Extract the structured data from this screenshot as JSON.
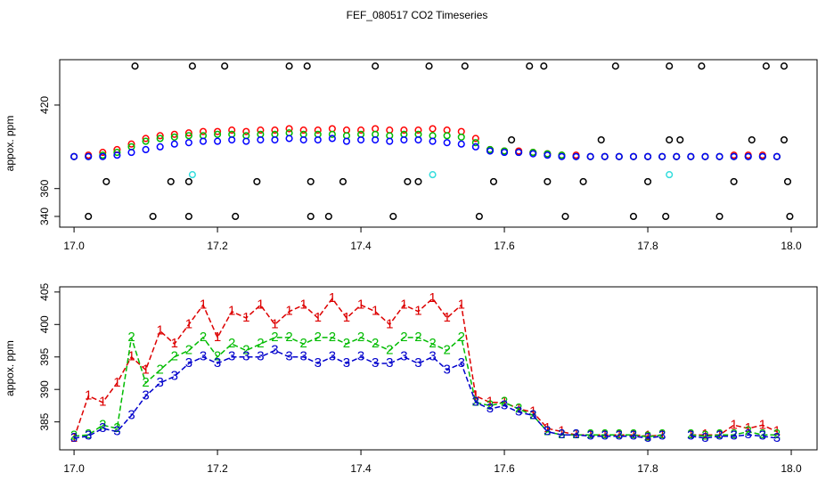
{
  "title": "FEF_080517  CO2 Timeseries",
  "chart_data": [
    {
      "type": "scatter",
      "ylabel": "appox. ppm",
      "xlim": [
        16.98,
        18.036
      ],
      "xticks": [
        {
          "value": 17.0,
          "label": "17.0"
        },
        17.2,
        17.4,
        17.6,
        17.8,
        {
          "value": 18.0,
          "label": "18.0"
        }
      ],
      "ylim": [
        332.3,
        452.6
      ],
      "yticks": [
        340,
        360,
        420
      ],
      "x": [
        17.0,
        17.02,
        17.04,
        17.06,
        17.08,
        17.1,
        17.12,
        17.14,
        17.16,
        17.18,
        17.2,
        17.22,
        17.24,
        17.26,
        17.28,
        17.3,
        17.32,
        17.34,
        17.36,
        17.38,
        17.4,
        17.42,
        17.44,
        17.46,
        17.48,
        17.5,
        17.52,
        17.54,
        17.56,
        17.58,
        17.6,
        17.62,
        17.64,
        17.66,
        17.68,
        17.7,
        17.72,
        17.74,
        17.76,
        17.78,
        17.8,
        17.82,
        17.84,
        17.86,
        17.88,
        17.9,
        17.92,
        17.94,
        17.96,
        17.98
      ],
      "series": [
        {
          "color": "#ff0000",
          "values": [
            383,
            384,
            386,
            388,
            392,
            396,
            398,
            399,
            400,
            401,
            401,
            402,
            401,
            402,
            402,
            403,
            402,
            402,
            403,
            402,
            402,
            403,
            402,
            402,
            402,
            403,
            402,
            401,
            396,
            388,
            387,
            387,
            386,
            385,
            384,
            384,
            383,
            383,
            383,
            383,
            383,
            383,
            383,
            383,
            383,
            383,
            384,
            384,
            384,
            383
          ]
        },
        {
          "color": "#00bb00",
          "values": [
            383,
            383,
            384,
            386,
            390,
            394,
            396,
            397,
            398,
            398,
            399,
            399,
            398,
            399,
            399,
            400,
            399,
            399,
            399,
            398,
            399,
            399,
            398,
            399,
            399,
            398,
            398,
            397,
            393,
            388,
            387,
            386,
            386,
            385,
            384,
            383,
            383,
            383,
            383,
            383,
            383,
            383,
            383,
            383,
            383,
            383,
            383,
            383,
            383,
            383
          ]
        },
        {
          "color": "#0000ff",
          "values": [
            383,
            383,
            383,
            384,
            386,
            388,
            390,
            392,
            393,
            394,
            394,
            395,
            394,
            395,
            395,
            396,
            395,
            395,
            396,
            394,
            395,
            395,
            394,
            395,
            395,
            394,
            393,
            392,
            390,
            387,
            386,
            386,
            385,
            384,
            383,
            383,
            383,
            383,
            383,
            383,
            383,
            383,
            383,
            383,
            383,
            383,
            383,
            383,
            383,
            383
          ]
        },
        {
          "color": "#000000",
          "x": [
            17.02,
            17.045,
            17.085,
            17.11,
            17.135,
            17.16,
            17.16,
            17.165,
            17.21,
            17.225,
            17.255,
            17.3,
            17.325,
            17.33,
            17.33,
            17.355,
            17.375,
            17.42,
            17.445,
            17.465,
            17.48,
            17.495,
            17.545,
            17.565,
            17.585,
            17.61,
            17.635,
            17.655,
            17.66,
            17.685,
            17.71,
            17.735,
            17.755,
            17.78,
            17.8,
            17.825,
            17.83,
            17.83,
            17.845,
            17.875,
            17.9,
            17.92,
            17.945,
            17.965,
            17.99,
            17.99,
            17.995,
            17.998
          ],
          "values": [
            340,
            365,
            448,
            340,
            365,
            365,
            340,
            448,
            448,
            340,
            365,
            448,
            448,
            365,
            340,
            340,
            365,
            448,
            340,
            365,
            365,
            448,
            448,
            340,
            365,
            395,
            448,
            448,
            365,
            340,
            365,
            395,
            448,
            340,
            365,
            340,
            448,
            395,
            395,
            448,
            340,
            365,
            395,
            448,
            448,
            395,
            365,
            340
          ]
        },
        {
          "color": "#33dddd",
          "x": [
            17.165,
            17.5,
            17.83
          ],
          "values": [
            370,
            370,
            370
          ]
        }
      ]
    },
    {
      "type": "line",
      "ylabel": "appox. ppm",
      "xlim": [
        16.98,
        18.036
      ],
      "xticks": [
        {
          "value": 17.0,
          "label": "17.0"
        },
        17.2,
        17.4,
        17.6,
        17.8,
        {
          "value": 18.0,
          "label": "18.0"
        }
      ],
      "ylim": [
        380.7,
        405.8
      ],
      "yticks": [
        385,
        390,
        395,
        400,
        405
      ],
      "x": [
        17.0,
        17.02,
        17.04,
        17.06,
        17.08,
        17.1,
        17.12,
        17.14,
        17.16,
        17.18,
        17.2,
        17.22,
        17.24,
        17.26,
        17.28,
        17.3,
        17.32,
        17.34,
        17.36,
        17.38,
        17.4,
        17.42,
        17.44,
        17.46,
        17.48,
        17.5,
        17.52,
        17.54,
        17.56,
        17.58,
        17.6,
        17.62,
        17.64,
        17.66,
        17.68,
        17.7,
        17.72,
        17.74,
        17.76,
        17.78,
        17.8,
        17.82,
        17.84,
        17.86,
        17.88,
        17.9,
        17.92,
        17.94,
        17.96,
        17.98
      ],
      "series": [
        {
          "color": "#dd0000",
          "marker": "1",
          "values": [
            382.5,
            389,
            388,
            391,
            395,
            393,
            399,
            397,
            400,
            403,
            398,
            402,
            401,
            403,
            400,
            402,
            403,
            401,
            404,
            401,
            403,
            402,
            400,
            403,
            402,
            404,
            401,
            403,
            389,
            388,
            388,
            387,
            386.5,
            384,
            383.5,
            383,
            383,
            383,
            383,
            383,
            382.8,
            383,
            null,
            383,
            383,
            383,
            384.5,
            384,
            384.5,
            383.5
          ]
        },
        {
          "color": "#00bb00",
          "marker": "2",
          "values": [
            382.8,
            383,
            384.5,
            384,
            398,
            391,
            393,
            395,
            396,
            398,
            395,
            397,
            396,
            397,
            398,
            398,
            397,
            398,
            398,
            397,
            398,
            397,
            396,
            398,
            398,
            397,
            396,
            398,
            388,
            387.5,
            388,
            387,
            386,
            383.5,
            383,
            383,
            383,
            383,
            383,
            383,
            382.7,
            383,
            null,
            383,
            382.8,
            383,
            383,
            383.5,
            383,
            383
          ]
        },
        {
          "color": "#0000cc",
          "marker": "3",
          "values": [
            382.5,
            382.8,
            384,
            383.5,
            386,
            389,
            391,
            392,
            394,
            395,
            394,
            395,
            395,
            395,
            396,
            395,
            395,
            394,
            395,
            394,
            395,
            394,
            394,
            395,
            394,
            395,
            393,
            394,
            388,
            387,
            387.5,
            386.5,
            386,
            383.5,
            383,
            383,
            382.8,
            382.8,
            382.8,
            382.8,
            382.5,
            382.8,
            null,
            382.8,
            382.5,
            382.8,
            382.8,
            383,
            382.8,
            382.5
          ]
        }
      ]
    }
  ]
}
